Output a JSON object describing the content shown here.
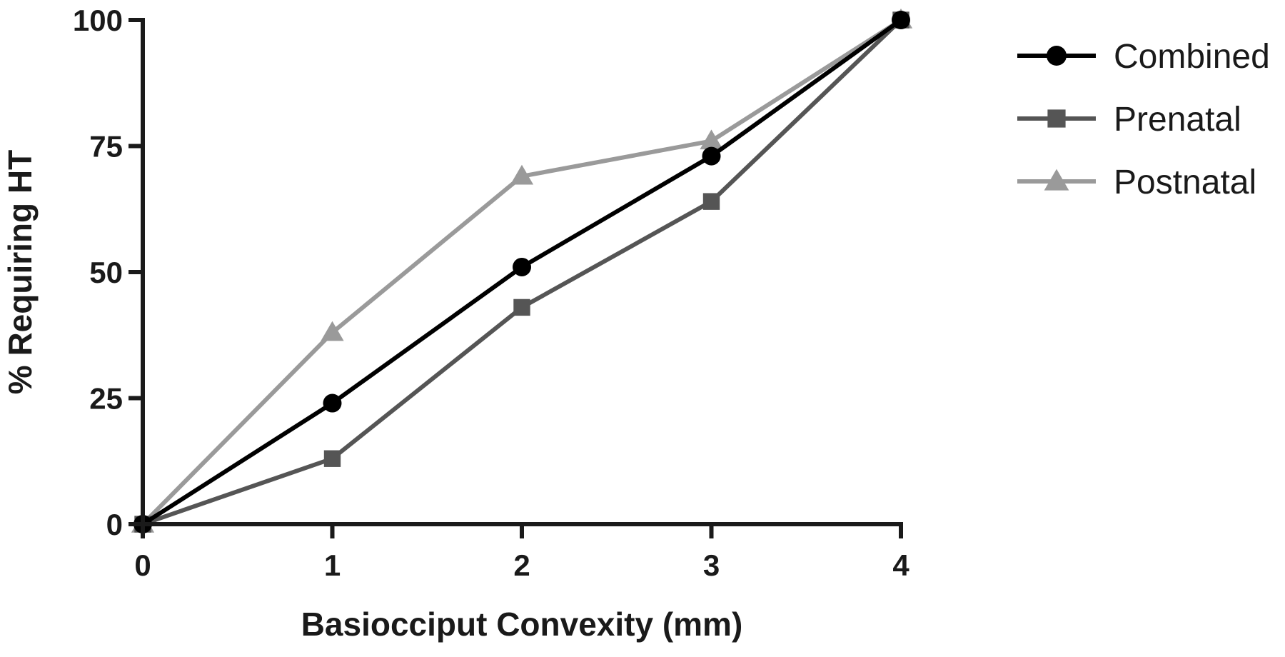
{
  "chart_data": {
    "type": "line",
    "title": "",
    "xlabel": "Basiocciput Convexity (mm)",
    "ylabel": "% Requiring HT",
    "xlim": [
      0,
      4
    ],
    "ylim": [
      0,
      100
    ],
    "x_ticks": [
      0,
      1,
      2,
      3,
      4
    ],
    "y_ticks": [
      0,
      25,
      50,
      75,
      100
    ],
    "x_tick_labels": [
      "0",
      "1",
      "2",
      "3",
      "4"
    ],
    "y_tick_labels": [
      "0",
      "25",
      "50",
      "75",
      "100"
    ],
    "grid": false,
    "legend_position": "top-right",
    "x": [
      0,
      1,
      2,
      3,
      4
    ],
    "series": [
      {
        "name": "Combined",
        "marker": "circle",
        "color": "#000000",
        "values": [
          0,
          24,
          51,
          73,
          100
        ]
      },
      {
        "name": "Prenatal",
        "marker": "square",
        "color": "#555555",
        "values": [
          0,
          13,
          43,
          64,
          100
        ]
      },
      {
        "name": "Postnatal",
        "marker": "triangle",
        "color": "#9a9a9a",
        "values": [
          0,
          38,
          69,
          76,
          100
        ]
      }
    ]
  }
}
